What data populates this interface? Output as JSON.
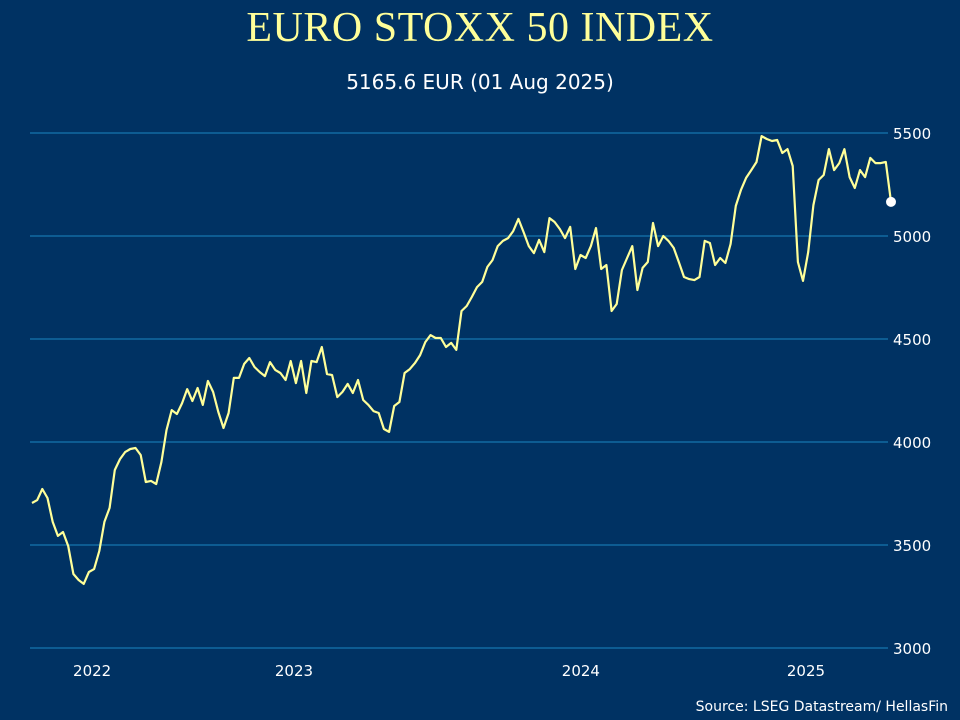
{
  "title": "EURO STOXX 50 INDEX",
  "subtitle": "5165.6 EUR (01 Aug 2025)",
  "source": "Source: LSEG Datastream/ HellasFin",
  "colors": {
    "background": "#003263",
    "line": "#ffff99",
    "grid": "#1a86c0",
    "last_point": "#ffffff",
    "title": "#ffff99"
  },
  "chart_data": {
    "type": "line",
    "title": "EURO STOXX 50 INDEX",
    "xlabel": "",
    "ylabel": "",
    "ylim": [
      3000,
      5500
    ],
    "yticks": [
      3000,
      3500,
      4000,
      4500,
      5000,
      5500
    ],
    "xtick_labels": [
      "2022",
      "2023",
      "2024",
      "2025"
    ],
    "grid": "horizontal",
    "y_axis_side": "right",
    "last_value": 5165.6,
    "last_date": "01 Aug 2025",
    "series": [
      {
        "values": [
          3704,
          3718,
          3772,
          3728,
          3612,
          3544,
          3563,
          3495,
          3359,
          3330,
          3311,
          3369,
          3383,
          3471,
          3612,
          3680,
          3864,
          3917,
          3951,
          3966,
          3971,
          3937,
          3806,
          3811,
          3796,
          3903,
          4058,
          4155,
          4136,
          4189,
          4257,
          4199,
          4262,
          4180,
          4296,
          4243,
          4146,
          4068,
          4141,
          4311,
          4311,
          4379,
          4408,
          4364,
          4340,
          4320,
          4388,
          4350,
          4335,
          4301,
          4393,
          4286,
          4393,
          4238,
          4393,
          4388,
          4461,
          4330,
          4325,
          4218,
          4243,
          4282,
          4238,
          4301,
          4204,
          4180,
          4150,
          4141,
          4063,
          4049,
          4175,
          4194,
          4335,
          4354,
          4383,
          4422,
          4485,
          4519,
          4505,
          4505,
          4461,
          4481,
          4447,
          4636,
          4660,
          4704,
          4752,
          4777,
          4850,
          4883,
          4951,
          4976,
          4990,
          5024,
          5083,
          5019,
          4951,
          4917,
          4981,
          4922,
          5087,
          5068,
          5034,
          4990,
          5044,
          4840,
          4908,
          4893,
          4951,
          5039,
          4840,
          4859,
          4636,
          4670,
          4835,
          4893,
          4951,
          4738,
          4845,
          4874,
          5063,
          4951,
          5000,
          4976,
          4942,
          4874,
          4801,
          4791,
          4786,
          4801,
          4976,
          4966,
          4859,
          4893,
          4869,
          4961,
          5146,
          5223,
          5282,
          5320,
          5359,
          5485,
          5471,
          5461,
          5466,
          5403,
          5422,
          5340,
          4874,
          4782,
          4922,
          5150,
          5272,
          5296,
          5422,
          5320,
          5354,
          5422,
          5286,
          5233,
          5320,
          5286,
          5379,
          5354,
          5354,
          5359,
          5165.6
        ]
      }
    ]
  }
}
